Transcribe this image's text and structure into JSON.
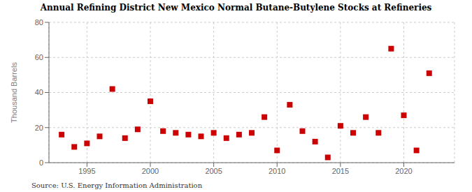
{
  "chart_data": {
    "type": "scatter",
    "title": "Annual Refining District New Mexico Normal Butane-Butylene Stocks at Refineries",
    "ylabel": "Thousand Barrels",
    "source": "Source: U.S. Energy Information Administration",
    "color": "#cc0000",
    "marker": "square",
    "grid": true,
    "xlim": [
      1992,
      2024
    ],
    "ylim": [
      0,
      80
    ],
    "yticks": [
      0,
      20,
      40,
      60,
      80
    ],
    "xticks": [
      1995,
      2000,
      2005,
      2010,
      2015,
      2020
    ],
    "x": [
      1993,
      1994,
      1995,
      1996,
      1997,
      1998,
      1999,
      2000,
      2001,
      2002,
      2003,
      2004,
      2005,
      2006,
      2007,
      2008,
      2009,
      2010,
      2011,
      2012,
      2013,
      2014,
      2015,
      2016,
      2017,
      2018,
      2019,
      2020,
      2021,
      2022
    ],
    "values": [
      16,
      9,
      11,
      15,
      42,
      14,
      19,
      35,
      18,
      17,
      16,
      15,
      17,
      14,
      16,
      17,
      26,
      7,
      33,
      18,
      12,
      3,
      21,
      17,
      26,
      17,
      65,
      27,
      7,
      51
    ]
  }
}
